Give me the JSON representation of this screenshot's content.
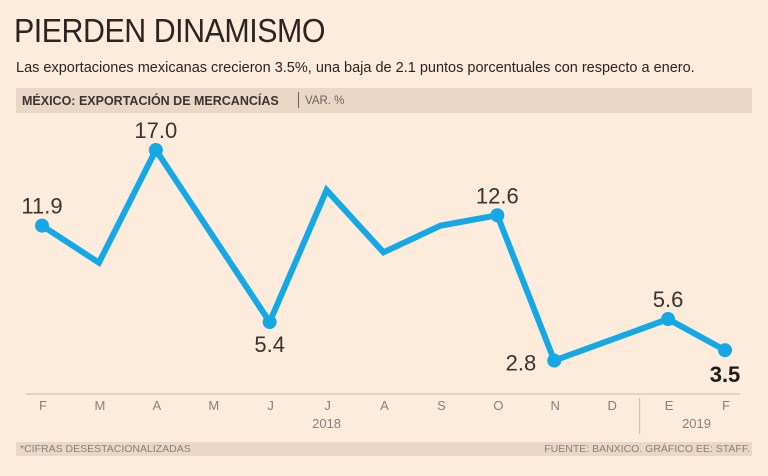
{
  "header": {
    "title": "PIERDEN DINAMISMO",
    "subtitle": "Las exportaciones mexicanas crecieron 3.5%, una baja de 2.1 puntos porcentuales con respecto a enero."
  },
  "chart_data": {
    "type": "line",
    "title": "MÉXICO: EXPORTACIÓN DE MERCANCÍAS",
    "unit": "VAR. %",
    "categories": [
      "F",
      "M",
      "A",
      "M",
      "J",
      "J",
      "A",
      "S",
      "O",
      "N",
      "D",
      "E",
      "F"
    ],
    "year_labels": [
      {
        "label": "2018",
        "span": [
          "F",
          "D"
        ]
      },
      {
        "label": "2019",
        "span": [
          "E",
          "F"
        ]
      }
    ],
    "series": [
      {
        "values": [
          11.9,
          9.4,
          17.0,
          11.2,
          5.4,
          14.3,
          10.1,
          11.9,
          12.6,
          2.8,
          4.2,
          5.6,
          3.5
        ]
      }
    ],
    "data_labels": [
      {
        "index": 0,
        "text": "11.9"
      },
      {
        "index": 2,
        "text": "17.0"
      },
      {
        "index": 4,
        "text": "5.4"
      },
      {
        "index": 8,
        "text": "12.6"
      },
      {
        "index": 9,
        "text": "2.8"
      },
      {
        "index": 11,
        "text": "5.6"
      },
      {
        "index": 12,
        "text": "3.5",
        "bold": true
      }
    ],
    "grid": false,
    "line_color": "#14a8e6"
  },
  "footer": {
    "note": "*CIFRAS DESESTACIONALIZADAS",
    "source": "FUENTE: BANXICO. GRÁFICO EE: STAFF."
  }
}
